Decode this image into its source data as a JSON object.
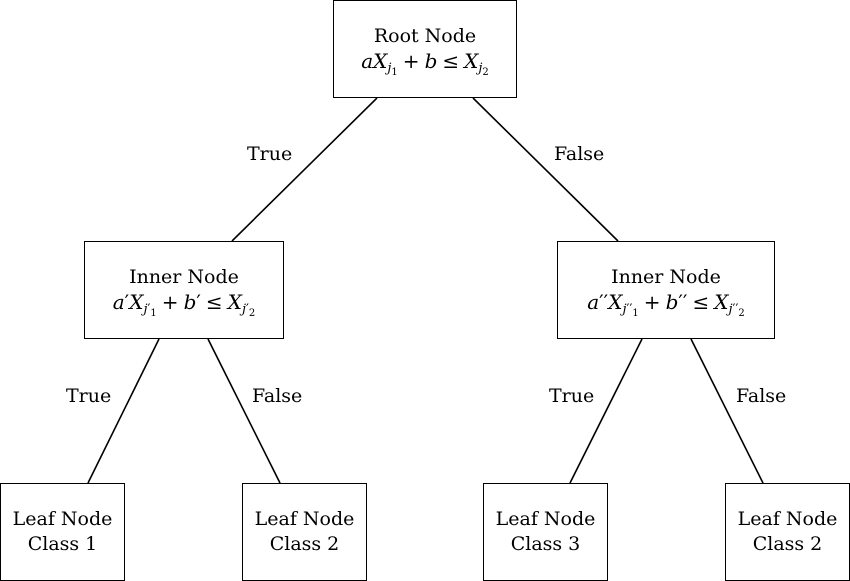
{
  "root": {
    "title": "Root Node",
    "formula": {
      "coef": "a",
      "var": "X",
      "lhs_sub": "j",
      "lhs_subsub": "1",
      "plus": "+",
      "offset": "b",
      "leq": "≤",
      "rhs_sub": "j",
      "rhs_subsub": "2"
    }
  },
  "inner_left": {
    "title": "Inner Node",
    "formula": {
      "coef": "a",
      "coef_prime": "′",
      "var": "X",
      "lhs_sub": "j",
      "lhs_sub_prime": "′",
      "lhs_subsub": "1",
      "plus": "+",
      "offset": "b",
      "offset_prime": "′",
      "leq": "≤",
      "rhs_sub": "j",
      "rhs_sub_prime": "′",
      "rhs_subsub": "2"
    }
  },
  "inner_right": {
    "title": "Inner Node",
    "formula": {
      "coef": "a",
      "coef_prime": "′′",
      "var": "X",
      "lhs_sub": "j",
      "lhs_sub_prime": "′′",
      "lhs_subsub": "1",
      "plus": "+",
      "offset": "b",
      "offset_prime": "′′",
      "leq": "≤",
      "rhs_sub": "j",
      "rhs_sub_prime": "′′",
      "rhs_subsub": "2"
    }
  },
  "leaves": [
    {
      "title": "Leaf Node",
      "class": "Class 1"
    },
    {
      "title": "Leaf Node",
      "class": "Class 2"
    },
    {
      "title": "Leaf Node",
      "class": "Class 3"
    },
    {
      "title": "Leaf Node",
      "class": "Class 2"
    }
  ],
  "edge_labels": {
    "root_true": "True",
    "root_false": "False",
    "left_true": "True",
    "left_false": "False",
    "right_true": "True",
    "right_false": "False"
  },
  "colors": {
    "stroke": "#000000",
    "background": "#ffffff"
  }
}
